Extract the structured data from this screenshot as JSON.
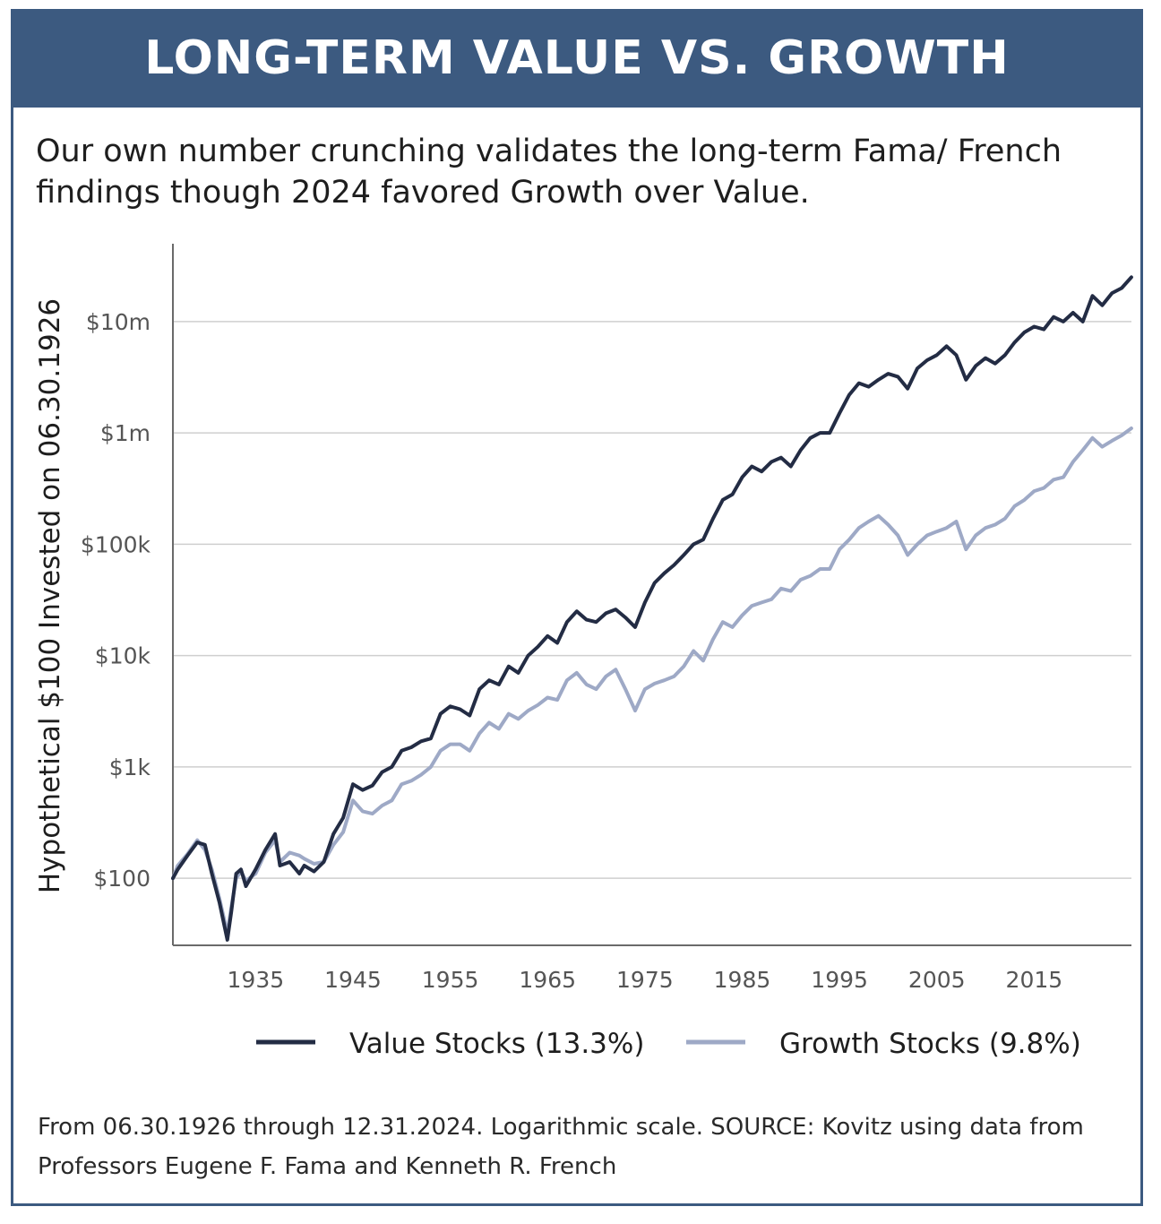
{
  "header": {
    "title": "LONG-TERM VALUE VS. GROWTH"
  },
  "subtitle": "Our own number crunching validates the long-term Fama/ French findings though 2024 favored Growth over Value.",
  "footnote": "From 06.30.1926 through 12.31.2024. Logarithmic scale. SOURCE: Kovitz using data from Professors Eugene F. Fama and Kenneth R. French",
  "colors": {
    "banner": "#3c5a80",
    "value": "#232c44",
    "growth": "#9ea9c6",
    "grid": "#cfcfcf",
    "axis": "#6a6a6a"
  },
  "chart_data": {
    "type": "line",
    "title": "LONG-TERM VALUE VS. GROWTH",
    "ylabel": "Hypothetical $100 Invested on 06.30.1926",
    "xlabel": "",
    "scale": "log",
    "xlim": [
      1926.5,
      2025
    ],
    "ylim": [
      25,
      50000000
    ],
    "x_ticks": [
      1935,
      1945,
      1955,
      1965,
      1975,
      1985,
      1995,
      2005,
      2015
    ],
    "x_tick_labels": [
      "1935",
      "1945",
      "1955",
      "1965",
      "1975",
      "1985",
      "1995",
      "2005",
      "2015"
    ],
    "y_ticks": [
      100,
      1000,
      10000,
      100000,
      1000000,
      10000000
    ],
    "y_tick_labels": [
      "$100",
      "$1k",
      "$10k",
      "$100k",
      "$1m",
      "$10m"
    ],
    "legend_position": "bottom",
    "grid": true,
    "series": [
      {
        "name": "Value Stocks (13.3%)",
        "x": [
          1926.5,
          1927,
          1928,
          1929,
          1929.8,
          1930.5,
          1931.3,
          1932.1,
          1932.5,
          1933,
          1933.5,
          1934,
          1935,
          1936,
          1937,
          1937.5,
          1938.5,
          1939.5,
          1940,
          1941,
          1942,
          1943,
          1944,
          1945,
          1946,
          1947,
          1948,
          1949,
          1950,
          1951,
          1952,
          1953,
          1954,
          1955,
          1956,
          1957,
          1958,
          1959,
          1960,
          1961,
          1962,
          1963,
          1964,
          1965,
          1966,
          1967,
          1968,
          1969,
          1970,
          1971,
          1972,
          1973,
          1974,
          1975,
          1976,
          1977,
          1978,
          1979,
          1980,
          1981,
          1982,
          1983,
          1984,
          1985,
          1986,
          1987,
          1988,
          1989,
          1990,
          1991,
          1992,
          1993,
          1994,
          1995,
          1996,
          1997,
          1998,
          1999,
          2000,
          2001,
          2002,
          2003,
          2004,
          2005,
          2006,
          2007,
          2008,
          2009,
          2010,
          2011,
          2012,
          2013,
          2014,
          2015,
          2016,
          2017,
          2018,
          2019,
          2020,
          2021,
          2022,
          2023,
          2024,
          2024.99
        ],
        "values": [
          100,
          120,
          160,
          210,
          200,
          110,
          60,
          28,
          50,
          110,
          120,
          85,
          120,
          180,
          250,
          130,
          140,
          110,
          130,
          115,
          140,
          250,
          350,
          700,
          620,
          680,
          900,
          1000,
          1400,
          1500,
          1700,
          1800,
          3000,
          3500,
          3300,
          2900,
          5000,
          6000,
          5500,
          8000,
          7000,
          10000,
          12000,
          15000,
          13000,
          20000,
          25000,
          21000,
          20000,
          24000,
          26000,
          22000,
          18000,
          30000,
          45000,
          55000,
          65000,
          80000,
          100000,
          110000,
          170000,
          250000,
          280000,
          400000,
          500000,
          450000,
          550000,
          600000,
          500000,
          700000,
          900000,
          1000000,
          1000000,
          1500000,
          2200000,
          2800000,
          2600000,
          3000000,
          3400000,
          3200000,
          2500000,
          3800000,
          4500000,
          5000000,
          6000000,
          5000000,
          3000000,
          4000000,
          4700000,
          4200000,
          5000000,
          6500000,
          8000000,
          9000000,
          8500000,
          11000000,
          10000000,
          12000000,
          10000000,
          17000000,
          14000000,
          18000000,
          20000000,
          25000000
        ]
      },
      {
        "name": "Growth Stocks (9.8%)",
        "x": [
          1926.5,
          1927,
          1928,
          1929,
          1929.8,
          1930.5,
          1931.3,
          1932.1,
          1932.5,
          1933,
          1933.5,
          1934,
          1935,
          1936,
          1937,
          1937.5,
          1938.5,
          1939.5,
          1940,
          1941,
          1942,
          1943,
          1944,
          1945,
          1946,
          1947,
          1948,
          1949,
          1950,
          1951,
          1952,
          1953,
          1954,
          1955,
          1956,
          1957,
          1958,
          1959,
          1960,
          1961,
          1962,
          1963,
          1964,
          1965,
          1966,
          1967,
          1968,
          1969,
          1970,
          1971,
          1972,
          1973,
          1974,
          1975,
          1976,
          1977,
          1978,
          1979,
          1980,
          1981,
          1982,
          1983,
          1984,
          1985,
          1986,
          1987,
          1988,
          1989,
          1990,
          1991,
          1992,
          1993,
          1994,
          1995,
          1996,
          1997,
          1998,
          1999,
          2000,
          2001,
          2002,
          2003,
          2004,
          2005,
          2006,
          2007,
          2008,
          2009,
          2010,
          2011,
          2012,
          2013,
          2014,
          2015,
          2016,
          2017,
          2018,
          2019,
          2020,
          2021,
          2022,
          2023,
          2024,
          2024.99
        ],
        "values": [
          100,
          130,
          165,
          220,
          180,
          120,
          65,
          32,
          55,
          100,
          115,
          95,
          110,
          170,
          220,
          140,
          170,
          160,
          150,
          135,
          140,
          200,
          260,
          500,
          400,
          380,
          450,
          500,
          700,
          750,
          850,
          1000,
          1400,
          1600,
          1600,
          1400,
          2000,
          2500,
          2200,
          3000,
          2700,
          3200,
          3600,
          4200,
          4000,
          6000,
          7000,
          5500,
          5000,
          6500,
          7500,
          5000,
          3200,
          5000,
          5600,
          6000,
          6500,
          8000,
          11000,
          9000,
          14000,
          20000,
          18000,
          23000,
          28000,
          30000,
          32000,
          40000,
          38000,
          48000,
          52000,
          60000,
          60000,
          90000,
          110000,
          140000,
          160000,
          180000,
          150000,
          120000,
          80000,
          100000,
          120000,
          130000,
          140000,
          160000,
          90000,
          120000,
          140000,
          150000,
          170000,
          220000,
          250000,
          300000,
          320000,
          380000,
          400000,
          550000,
          700000,
          900000,
          750000,
          850000,
          950000,
          1100000
        ]
      }
    ]
  }
}
